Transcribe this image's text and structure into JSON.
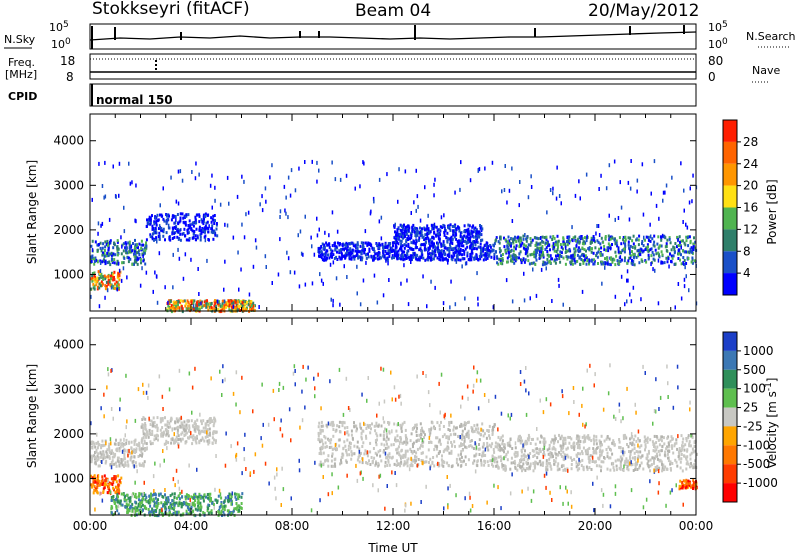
{
  "header": {
    "station": "Stokkseyri (fitACF)",
    "beam": "Beam 04",
    "date": "20/May/2012"
  },
  "panels": {
    "sky": {
      "left_label": "N.Sky",
      "right_label": "N.Search",
      "left_ticks": [
        "10^5",
        "10^0"
      ],
      "right_ticks": [
        "10^5",
        "10^0"
      ]
    },
    "freq": {
      "left_label_1": "Freq.",
      "left_label_2": "[MHz]",
      "right_label": "Nave",
      "left_ticks": [
        "18",
        "8"
      ],
      "right_ticks": [
        "80",
        "0"
      ]
    },
    "cpid": {
      "label": "CPID",
      "value": "normal 150"
    }
  },
  "chart_data": [
    {
      "type": "heatmap",
      "parameter": "Power",
      "ylabel": "Slant Range [km]",
      "colorbar_label": "Power [dB]",
      "ylim": [
        180,
        4600
      ],
      "y_ticks": [
        1000,
        2000,
        3000,
        4000
      ],
      "colorbar_ticks": [
        "4",
        "8",
        "12",
        "16",
        "20",
        "24",
        "28"
      ],
      "colors": [
        "#0000ff",
        "#1a50c8",
        "#2f7f6a",
        "#50b450",
        "#ffe014",
        "#ff9600",
        "#ff6400",
        "#ff1e00"
      ],
      "bands_hours_km": [
        {
          "t0": 0.0,
          "t1": 2.2,
          "r0": 1250,
          "r1": 1800,
          "level": "medium"
        },
        {
          "t0": 0.0,
          "t1": 1.2,
          "r0": 700,
          "r1": 1100,
          "level": "high"
        },
        {
          "t0": 2.2,
          "t1": 5.0,
          "r0": 1800,
          "r1": 2400,
          "level": "low"
        },
        {
          "t0": 3.0,
          "t1": 6.5,
          "r0": 200,
          "r1": 450,
          "level": "high"
        },
        {
          "t0": 9.0,
          "t1": 16.0,
          "r0": 1350,
          "r1": 1750,
          "level": "low"
        },
        {
          "t0": 12.0,
          "t1": 15.5,
          "r0": 1750,
          "r1": 2150,
          "level": "low"
        },
        {
          "t0": 16.0,
          "t1": 24.0,
          "r0": 1250,
          "r1": 1900,
          "level": "medium"
        }
      ]
    },
    {
      "type": "heatmap",
      "parameter": "Velocity",
      "xlabel": "Time UT",
      "ylabel": "Slant Range [km]",
      "colorbar_label": "Velocity [m s^-1]",
      "x_ticks": [
        "00:00",
        "04:00",
        "08:00",
        "12:00",
        "16:00",
        "20:00",
        "00:00"
      ],
      "ylim": [
        180,
        4600
      ],
      "y_ticks": [
        1000,
        2000,
        3000,
        4000
      ],
      "colorbar_ticks": [
        "1000",
        "500",
        "100",
        "25",
        "-25",
        "-100",
        "-500",
        "-1000"
      ],
      "colors": [
        "#1c3fc8",
        "#3c78b4",
        "#2f8f5a",
        "#5fbf4f",
        "#c8c8c3",
        "#ffa500",
        "#ff7800",
        "#ff3c00",
        "#ff0000"
      ],
      "bands_hours_km": [
        {
          "t0": 0.0,
          "t1": 2.2,
          "r0": 1300,
          "r1": 1900,
          "level": "gray"
        },
        {
          "t0": 0.0,
          "t1": 1.2,
          "r0": 700,
          "r1": 1100,
          "level": "red"
        },
        {
          "t0": 0.8,
          "t1": 6.0,
          "r0": 200,
          "r1": 700,
          "level": "green"
        },
        {
          "t0": 2.0,
          "t1": 5.0,
          "r0": 1800,
          "r1": 2400,
          "level": "gray"
        },
        {
          "t0": 9.0,
          "t1": 16.0,
          "r0": 1300,
          "r1": 2300,
          "level": "gray"
        },
        {
          "t0": 16.0,
          "t1": 24.0,
          "r0": 1200,
          "r1": 2000,
          "level": "gray"
        },
        {
          "t0": 23.3,
          "t1": 24.0,
          "r0": 800,
          "r1": 1000,
          "level": "red"
        }
      ]
    }
  ]
}
